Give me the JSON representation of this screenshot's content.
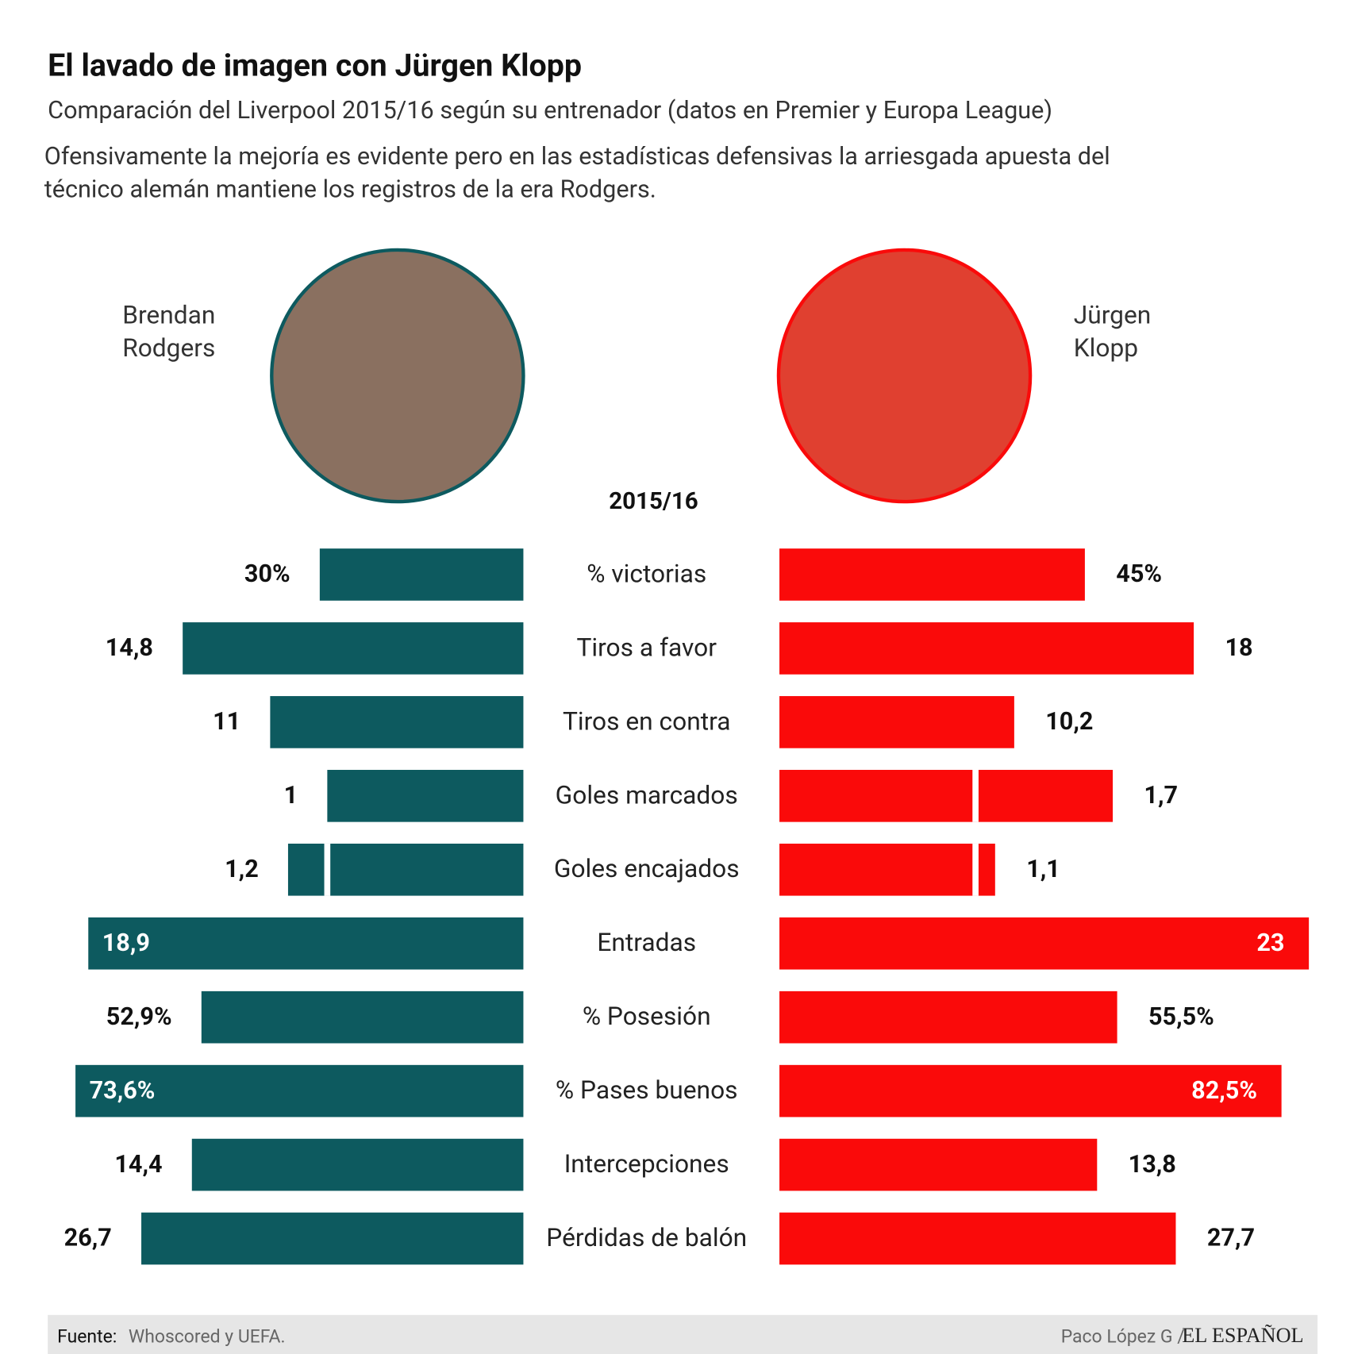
{
  "header": {
    "title": "El lavado de imagen con Jürgen Klopp",
    "subtitle": "Comparación del Liverpool 2015/16 según su entrenador (datos en Premier y Europa League)",
    "description": [
      "Ofensivamente la mejoría es evidente pero en las estadísticas defensivas la arriesgada apuesta del",
      "técnico alemán mantiene los registros de la era Rodgers."
    ]
  },
  "chart_data": {
    "type": "butterfly",
    "title": "2015/16",
    "categories": [
      "% victorias",
      "Tiros a favor",
      "Tiros en contra",
      "Goles marcados",
      "Goles encajados",
      "Entradas",
      "% Posesión",
      "% Pases buenos",
      "Intercepciones",
      "Pérdidas de balón"
    ],
    "xlims": [
      [
        0,
        78
      ],
      [
        0,
        23
      ],
      [
        0,
        23
      ],
      [
        0,
        2.7
      ],
      [
        0,
        2.7
      ],
      [
        0,
        23
      ],
      [
        0,
        87
      ],
      [
        0,
        87
      ],
      [
        0,
        23
      ],
      [
        0,
        37
      ]
    ],
    "row_ticks": [
      [],
      [],
      [],
      [
        1
      ],
      [
        1
      ],
      [],
      [],
      [],
      [],
      []
    ],
    "series": [
      {
        "name_lines": [
          "Brendan",
          "Rodgers"
        ],
        "color": "#0d5a5f",
        "values": [
          30,
          14.8,
          11,
          1,
          1.2,
          18.9,
          52.9,
          73.6,
          14.4,
          26.7
        ],
        "value_labels": [
          "30%",
          "14,8",
          "11",
          "1",
          "1,2",
          "18,9",
          "52,9%",
          "73,6%",
          "14,4",
          "26,7"
        ]
      },
      {
        "name_lines": [
          "Jürgen",
          "Klopp"
        ],
        "color": "#fa0a0a",
        "values": [
          45,
          18,
          10.2,
          1.7,
          1.1,
          23,
          55.5,
          82.5,
          13.8,
          27.7
        ],
        "value_labels": [
          "45%",
          "18",
          "10,2",
          "1,7",
          "1,1",
          "23",
          "55,5%",
          "82,5%",
          "13,8",
          "27,7"
        ]
      }
    ]
  },
  "footer": {
    "source_label": "Fuente:",
    "source": "Whoscored y UEFA.",
    "author": "Paco López G /",
    "brand": "EL ESPAÑOL"
  }
}
